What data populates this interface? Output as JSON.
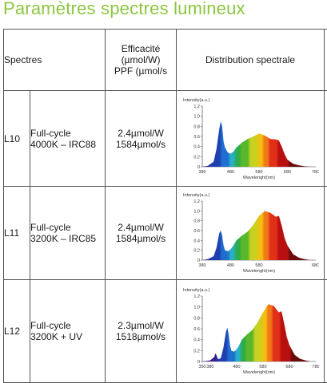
{
  "title": "Paramètres spectres lumineux",
  "headers": {
    "spectres": "Spectres",
    "efficacite_line1": "Efficacité",
    "efficacite_line2": "(µmol/W)",
    "efficacite_line3": "PPF (µmol/s",
    "distribution": "Distribution spectrale"
  },
  "rows": [
    {
      "code": "L10",
      "name_line1": "Full-cycle",
      "name_line2": "4000K – IRC88",
      "eff_line1": "2.4µmol/W",
      "eff_line2": "1584µmol/s"
    },
    {
      "code": "L11",
      "name_line1": "Full-cycle",
      "name_line2": "3200K – IRC85",
      "eff_line1": "2.4µmol/W",
      "eff_line2": "1584µmol/s"
    },
    {
      "code": "L12",
      "name_line1": "Full-cycle",
      "name_line2": "3200K + UV",
      "eff_line1": "2.3µmol/W",
      "eff_line2": "1518µmol/s"
    }
  ],
  "chart_data": [
    {
      "type": "area",
      "ylabel": "Intensity(a.u.)",
      "xlabel": "Wavelenght(nm)",
      "xlim": [
        380,
        780
      ],
      "ylim": [
        0,
        1.2
      ],
      "x_ticks": [
        "380",
        "480",
        "580",
        "680",
        "78C"
      ],
      "y_ticks": [
        "0",
        "0.2",
        "0.4",
        "0.6",
        "0.8",
        "1.0",
        "1.2"
      ],
      "x": [
        380,
        400,
        420,
        430,
        440,
        445,
        450,
        455,
        460,
        470,
        480,
        490,
        500,
        520,
        540,
        560,
        580,
        600,
        620,
        640,
        650,
        660,
        670,
        680,
        700,
        720,
        740,
        760,
        780
      ],
      "y": [
        0,
        0.02,
        0.1,
        0.35,
        0.75,
        0.9,
        0.8,
        0.5,
        0.38,
        0.28,
        0.26,
        0.3,
        0.38,
        0.48,
        0.55,
        0.6,
        0.66,
        0.62,
        0.55,
        0.54,
        0.52,
        0.4,
        0.25,
        0.14,
        0.06,
        0.03,
        0.01,
        0.0,
        0.0
      ]
    },
    {
      "type": "area",
      "ylabel": "Intensity(a.u.)",
      "xlabel": "Wavelenght(nm)",
      "xlim": [
        380,
        780
      ],
      "ylim": [
        0,
        1.2
      ],
      "x_ticks": [
        "380",
        "480",
        "580",
        "68C"
      ],
      "y_ticks": [
        "0",
        "0.2",
        "0.4",
        "0.6",
        "0.8",
        "1.0",
        "1.2"
      ],
      "x": [
        380,
        400,
        420,
        430,
        440,
        445,
        450,
        455,
        460,
        470,
        480,
        490,
        500,
        520,
        540,
        560,
        580,
        600,
        620,
        640,
        650,
        660,
        670,
        680,
        700,
        720,
        740,
        760,
        780
      ],
      "y": [
        0,
        0.02,
        0.08,
        0.25,
        0.55,
        0.6,
        0.5,
        0.3,
        0.2,
        0.18,
        0.22,
        0.3,
        0.4,
        0.5,
        0.58,
        0.72,
        0.9,
        1.0,
        0.96,
        0.88,
        0.9,
        0.7,
        0.45,
        0.3,
        0.12,
        0.05,
        0.02,
        0.0,
        0.0
      ]
    },
    {
      "type": "area",
      "ylabel": "Intensity(a.u.)",
      "xlabel": "Wavelenght(nm)",
      "xlim": [
        350,
        780
      ],
      "ylim": [
        0,
        1.2
      ],
      "x_ticks": [
        "350",
        "380",
        "480",
        "580",
        "680",
        "780"
      ],
      "y_ticks": [
        "0",
        "0.2",
        "0.4",
        "0.6",
        "0.8",
        "1.0",
        "1.2"
      ],
      "x": [
        350,
        380,
        395,
        400,
        405,
        410,
        420,
        430,
        440,
        445,
        450,
        455,
        460,
        470,
        480,
        490,
        500,
        520,
        540,
        560,
        580,
        600,
        620,
        640,
        650,
        660,
        670,
        680,
        700,
        720,
        740,
        760,
        780
      ],
      "y": [
        0,
        0.02,
        0.08,
        0.15,
        0.1,
        0.04,
        0.06,
        0.25,
        0.55,
        0.62,
        0.5,
        0.3,
        0.2,
        0.18,
        0.22,
        0.3,
        0.4,
        0.5,
        0.58,
        0.72,
        0.9,
        1.05,
        1.02,
        0.9,
        0.92,
        0.7,
        0.45,
        0.3,
        0.12,
        0.05,
        0.02,
        0.0,
        0.0
      ]
    }
  ]
}
